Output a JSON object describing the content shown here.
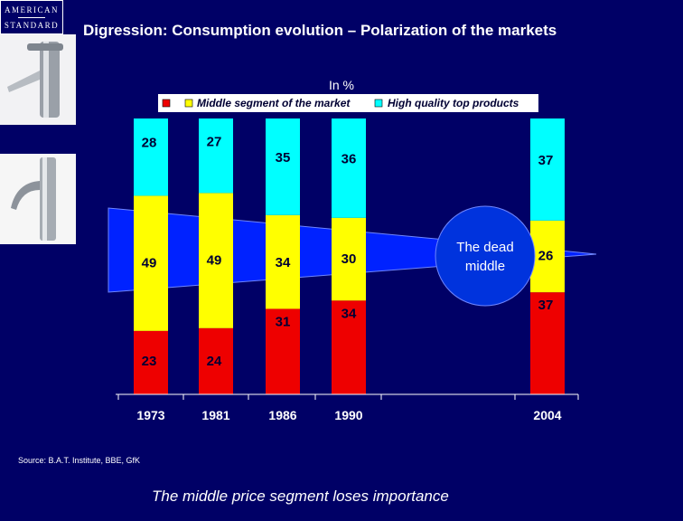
{
  "logo": {
    "line1": "AMERICAN",
    "line2": "STANDARD"
  },
  "slide_title": "Digression: Consumption evolution – Polarization of the markets",
  "source": "Source: B.A.T. Institute, BBE, GfK",
  "footer": "The middle price segment loses importance",
  "annotation": {
    "line1": "The dead",
    "line2": "middle"
  },
  "chart_data": {
    "type": "bar",
    "stacked": true,
    "unit_label": "In %",
    "categories": [
      "1973",
      "1981",
      "1986",
      "1990",
      "2004"
    ],
    "series": [
      {
        "name": "",
        "color": "#ee0000",
        "values": [
          23,
          24,
          31,
          34,
          37
        ]
      },
      {
        "name": "Middle segment of the market",
        "color": "#ffff00",
        "values": [
          49,
          49,
          34,
          30,
          26
        ]
      },
      {
        "name": "High quality top products",
        "color": "#00ffff",
        "values": [
          28,
          27,
          35,
          36,
          37
        ]
      }
    ],
    "ylim": [
      0,
      100
    ],
    "grid": false,
    "legend_position": "top"
  },
  "colors": {
    "background": "#000066",
    "funnel": "#0022ff",
    "circle": "#0033dd"
  }
}
